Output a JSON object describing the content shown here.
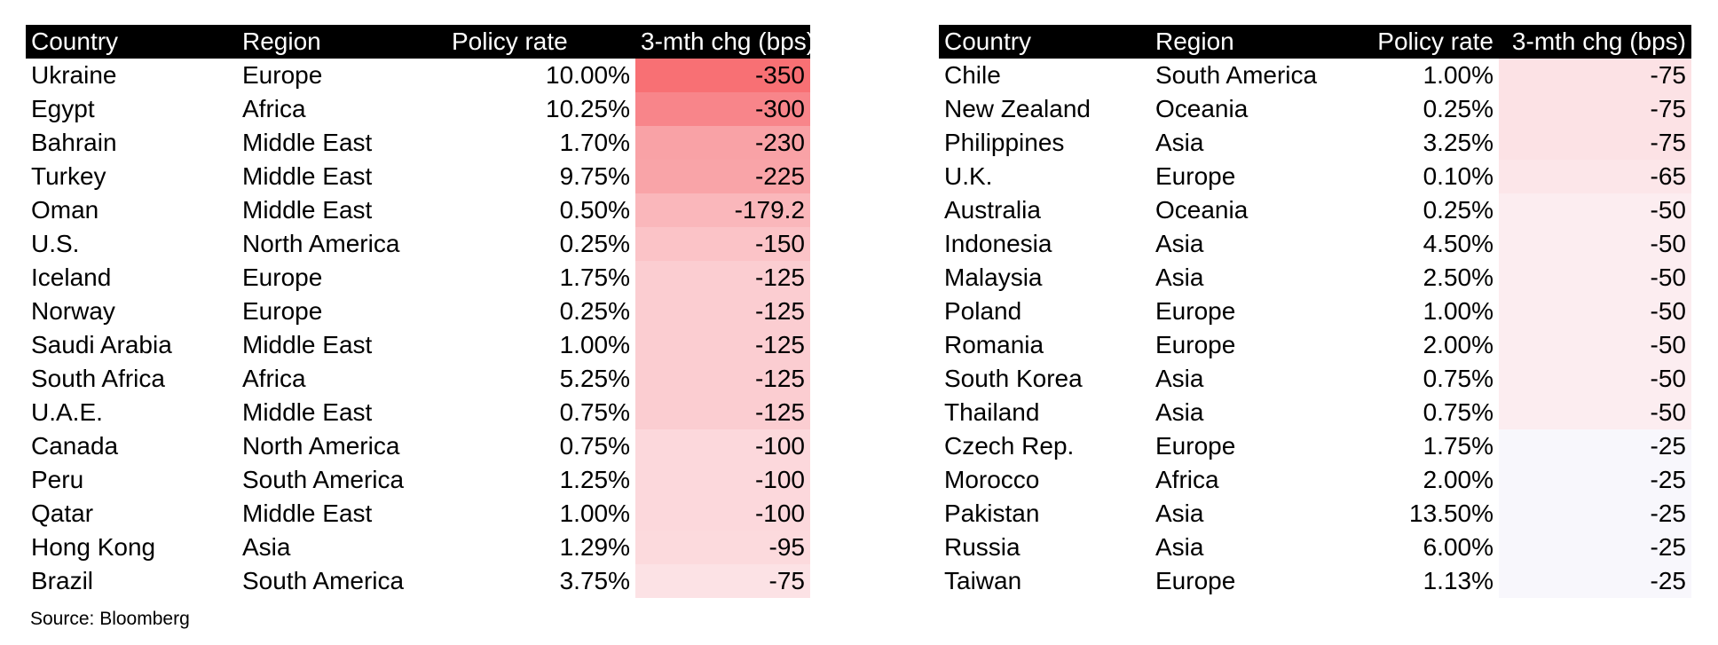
{
  "headers": {
    "country": "Country",
    "region": "Region",
    "policy_rate": "Policy rate",
    "change": "3-mth chg (bps)"
  },
  "left_rows": [
    {
      "country": "Ukraine",
      "region": "Europe",
      "rate": "10.00%",
      "chg": "-350",
      "color": "#f87074"
    },
    {
      "country": "Egypt",
      "region": "Africa",
      "rate": "10.25%",
      "chg": "-300",
      "color": "#f8858a"
    },
    {
      "country": "Bahrain",
      "region": "Middle East",
      "rate": "1.70%",
      "chg": "-230",
      "color": "#f9a2a6"
    },
    {
      "country": "Turkey",
      "region": "Middle East",
      "rate": "9.75%",
      "chg": "-225",
      "color": "#f9a4a8"
    },
    {
      "country": "Oman",
      "region": "Middle East",
      "rate": "0.50%",
      "chg": "-179.2",
      "color": "#fab7bb"
    },
    {
      "country": "U.S.",
      "region": "North America",
      "rate": "0.25%",
      "chg": "-150",
      "color": "#fbc3c7"
    },
    {
      "country": "Iceland",
      "region": "Europe",
      "rate": "1.75%",
      "chg": "-125",
      "color": "#fbcdd1"
    },
    {
      "country": "Norway",
      "region": "Europe",
      "rate": "0.25%",
      "chg": "-125",
      "color": "#fbcdd1"
    },
    {
      "country": "Saudi Arabia",
      "region": "Middle East",
      "rate": "1.00%",
      "chg": "-125",
      "color": "#fbcdd1"
    },
    {
      "country": "South Africa",
      "region": "Africa",
      "rate": "5.25%",
      "chg": "-125",
      "color": "#fbcdd1"
    },
    {
      "country": "U.A.E.",
      "region": "Middle East",
      "rate": "0.75%",
      "chg": "-125",
      "color": "#fbcdd1"
    },
    {
      "country": "Canada",
      "region": "North America",
      "rate": "0.75%",
      "chg": "-100",
      "color": "#fcd8dc"
    },
    {
      "country": "Peru",
      "region": "South America",
      "rate": "1.25%",
      "chg": "-100",
      "color": "#fcd8dc"
    },
    {
      "country": "Qatar",
      "region": "Middle East",
      "rate": "1.00%",
      "chg": "-100",
      "color": "#fcd8dc"
    },
    {
      "country": "Hong Kong",
      "region": "Asia",
      "rate": "1.29%",
      "chg": "-95",
      "color": "#fcdadd"
    },
    {
      "country": "Brazil",
      "region": "South America",
      "rate": "3.75%",
      "chg": "-75",
      "color": "#fce2e5"
    }
  ],
  "right_rows": [
    {
      "country": "Chile",
      "region": "South America",
      "rate": "1.00%",
      "chg": "-75",
      "color": "#fce2e5"
    },
    {
      "country": "New Zealand",
      "region": "Oceania",
      "rate": "0.25%",
      "chg": "-75",
      "color": "#fce2e5"
    },
    {
      "country": "Philippines",
      "region": "Asia",
      "rate": "3.25%",
      "chg": "-75",
      "color": "#fce2e5"
    },
    {
      "country": "U.K.",
      "region": "Europe",
      "rate": "0.10%",
      "chg": "-65",
      "color": "#fce6e9"
    },
    {
      "country": "Australia",
      "region": "Oceania",
      "rate": "0.25%",
      "chg": "-50",
      "color": "#fcedf0"
    },
    {
      "country": "Indonesia",
      "region": "Asia",
      "rate": "4.50%",
      "chg": "-50",
      "color": "#fcedf0"
    },
    {
      "country": "Malaysia",
      "region": "Asia",
      "rate": "2.50%",
      "chg": "-50",
      "color": "#fcedf0"
    },
    {
      "country": "Poland",
      "region": "Europe",
      "rate": "1.00%",
      "chg": "-50",
      "color": "#fcedf0"
    },
    {
      "country": "Romania",
      "region": "Europe",
      "rate": "2.00%",
      "chg": "-50",
      "color": "#fcedf0"
    },
    {
      "country": "South Korea",
      "region": "Asia",
      "rate": "0.75%",
      "chg": "-50",
      "color": "#fcedf0"
    },
    {
      "country": "Thailand",
      "region": "Asia",
      "rate": "0.75%",
      "chg": "-50",
      "color": "#fcedf0"
    },
    {
      "country": "Czech Rep.",
      "region": "Europe",
      "rate": "1.75%",
      "chg": "-25",
      "color": "#f8f7fc"
    },
    {
      "country": "Morocco",
      "region": "Africa",
      "rate": "2.00%",
      "chg": "-25",
      "color": "#f8f7fc"
    },
    {
      "country": "Pakistan",
      "region": "Asia",
      "rate": "13.50%",
      "chg": "-25",
      "color": "#f8f7fc"
    },
    {
      "country": "Russia",
      "region": "Asia",
      "rate": "6.00%",
      "chg": "-25",
      "color": "#f8f7fc"
    },
    {
      "country": "Taiwan",
      "region": "Europe",
      "rate": "1.13%",
      "chg": "-25",
      "color": "#f8f7fc"
    }
  ],
  "source": "Source: Bloomberg"
}
